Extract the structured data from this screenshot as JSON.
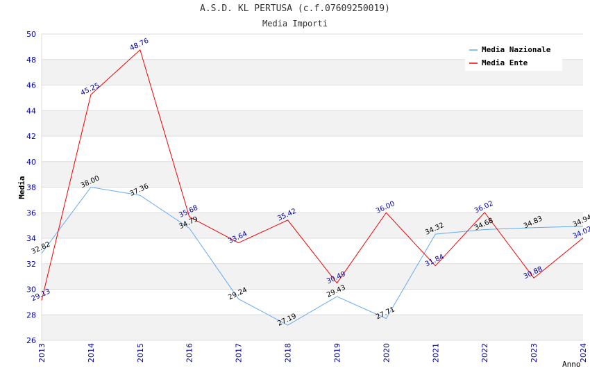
{
  "chart_data": {
    "type": "line",
    "title": "A.S.D. KL PERTUSA (c.f.07609250019)",
    "subtitle": "Media Importi",
    "xlabel": "Anno",
    "ylabel": "Media",
    "categories": [
      "2013",
      "2014",
      "2015",
      "2016",
      "2017",
      "2018",
      "2019",
      "2020",
      "2021",
      "2022",
      "2023",
      "2024"
    ],
    "ylim": [
      26,
      50
    ],
    "yticks": [
      26,
      28,
      30,
      32,
      34,
      36,
      38,
      40,
      42,
      44,
      46,
      48,
      50
    ],
    "grid": true,
    "legend_position": "top-right",
    "series": [
      {
        "name": "Media Nazionale",
        "color": "#66aaee",
        "values": [
          32.82,
          38.0,
          37.36,
          34.79,
          29.24,
          27.19,
          29.43,
          27.71,
          34.32,
          34.68,
          34.83,
          34.94
        ],
        "labels": [
          "32.82",
          "38.00",
          "37.36",
          "34.79",
          "29.24",
          "27.19",
          "29.43",
          "27.71",
          "34.32",
          "34.68",
          "34.83",
          "34.94"
        ]
      },
      {
        "name": "Media Ente",
        "color": "#ee0000",
        "values": [
          29.13,
          45.25,
          48.76,
          35.68,
          33.64,
          35.42,
          30.49,
          36.0,
          31.84,
          36.02,
          30.88,
          34.02
        ],
        "labels": [
          "29.13",
          "45.25",
          "48.76",
          "35.68",
          "33.64",
          "35.42",
          "30.49",
          "36.00",
          "31.84",
          "36.02",
          "30.88",
          "34.02"
        ]
      }
    ]
  }
}
